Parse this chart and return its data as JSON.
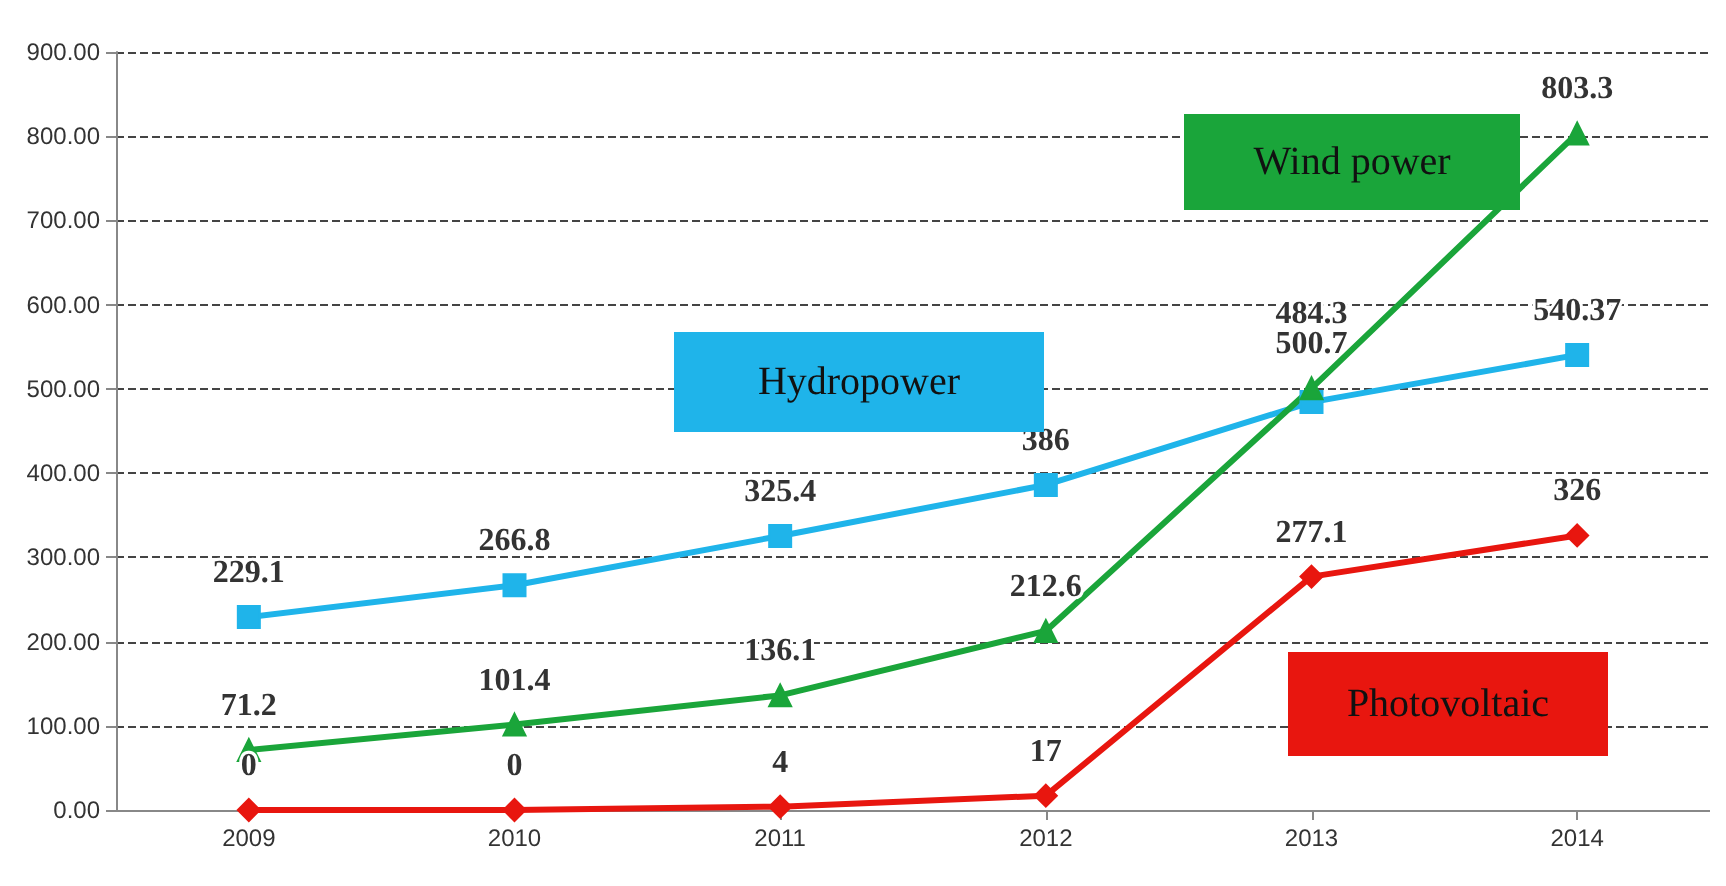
{
  "chart_data": {
    "type": "line",
    "categories": [
      "2009",
      "2010",
      "2011",
      "2012",
      "2013",
      "2014"
    ],
    "series": [
      {
        "name": "Hydropower",
        "color": "#1fb4ea",
        "marker": "square",
        "values": [
          229.1,
          266.8,
          325.4,
          386,
          484.3,
          540.37
        ]
      },
      {
        "name": "Wind power",
        "color": "#1aa53a",
        "marker": "triangle",
        "values": [
          71.2,
          101.4,
          136.1,
          212.6,
          500.7,
          803.3
        ]
      },
      {
        "name": "Photovoltaic",
        "color": "#e8160f",
        "marker": "diamond",
        "values": [
          0,
          0,
          4,
          17,
          277.1,
          326
        ]
      }
    ],
    "ylim": [
      0,
      900
    ],
    "yticks": [
      {
        "value": 0,
        "label": "0.00"
      },
      {
        "value": 100,
        "label": "100.00"
      },
      {
        "value": 200,
        "label": "200.00"
      },
      {
        "value": 300,
        "label": "300.00"
      },
      {
        "value": 400,
        "label": "400.00"
      },
      {
        "value": 500,
        "label": "500.00"
      },
      {
        "value": 600,
        "label": "600.00"
      },
      {
        "value": 700,
        "label": "700.00"
      },
      {
        "value": 800,
        "label": "800.00"
      },
      {
        "value": 900,
        "label": "900.00"
      }
    ],
    "grid": "y",
    "line_style": "solid",
    "data_labels": true
  }
}
